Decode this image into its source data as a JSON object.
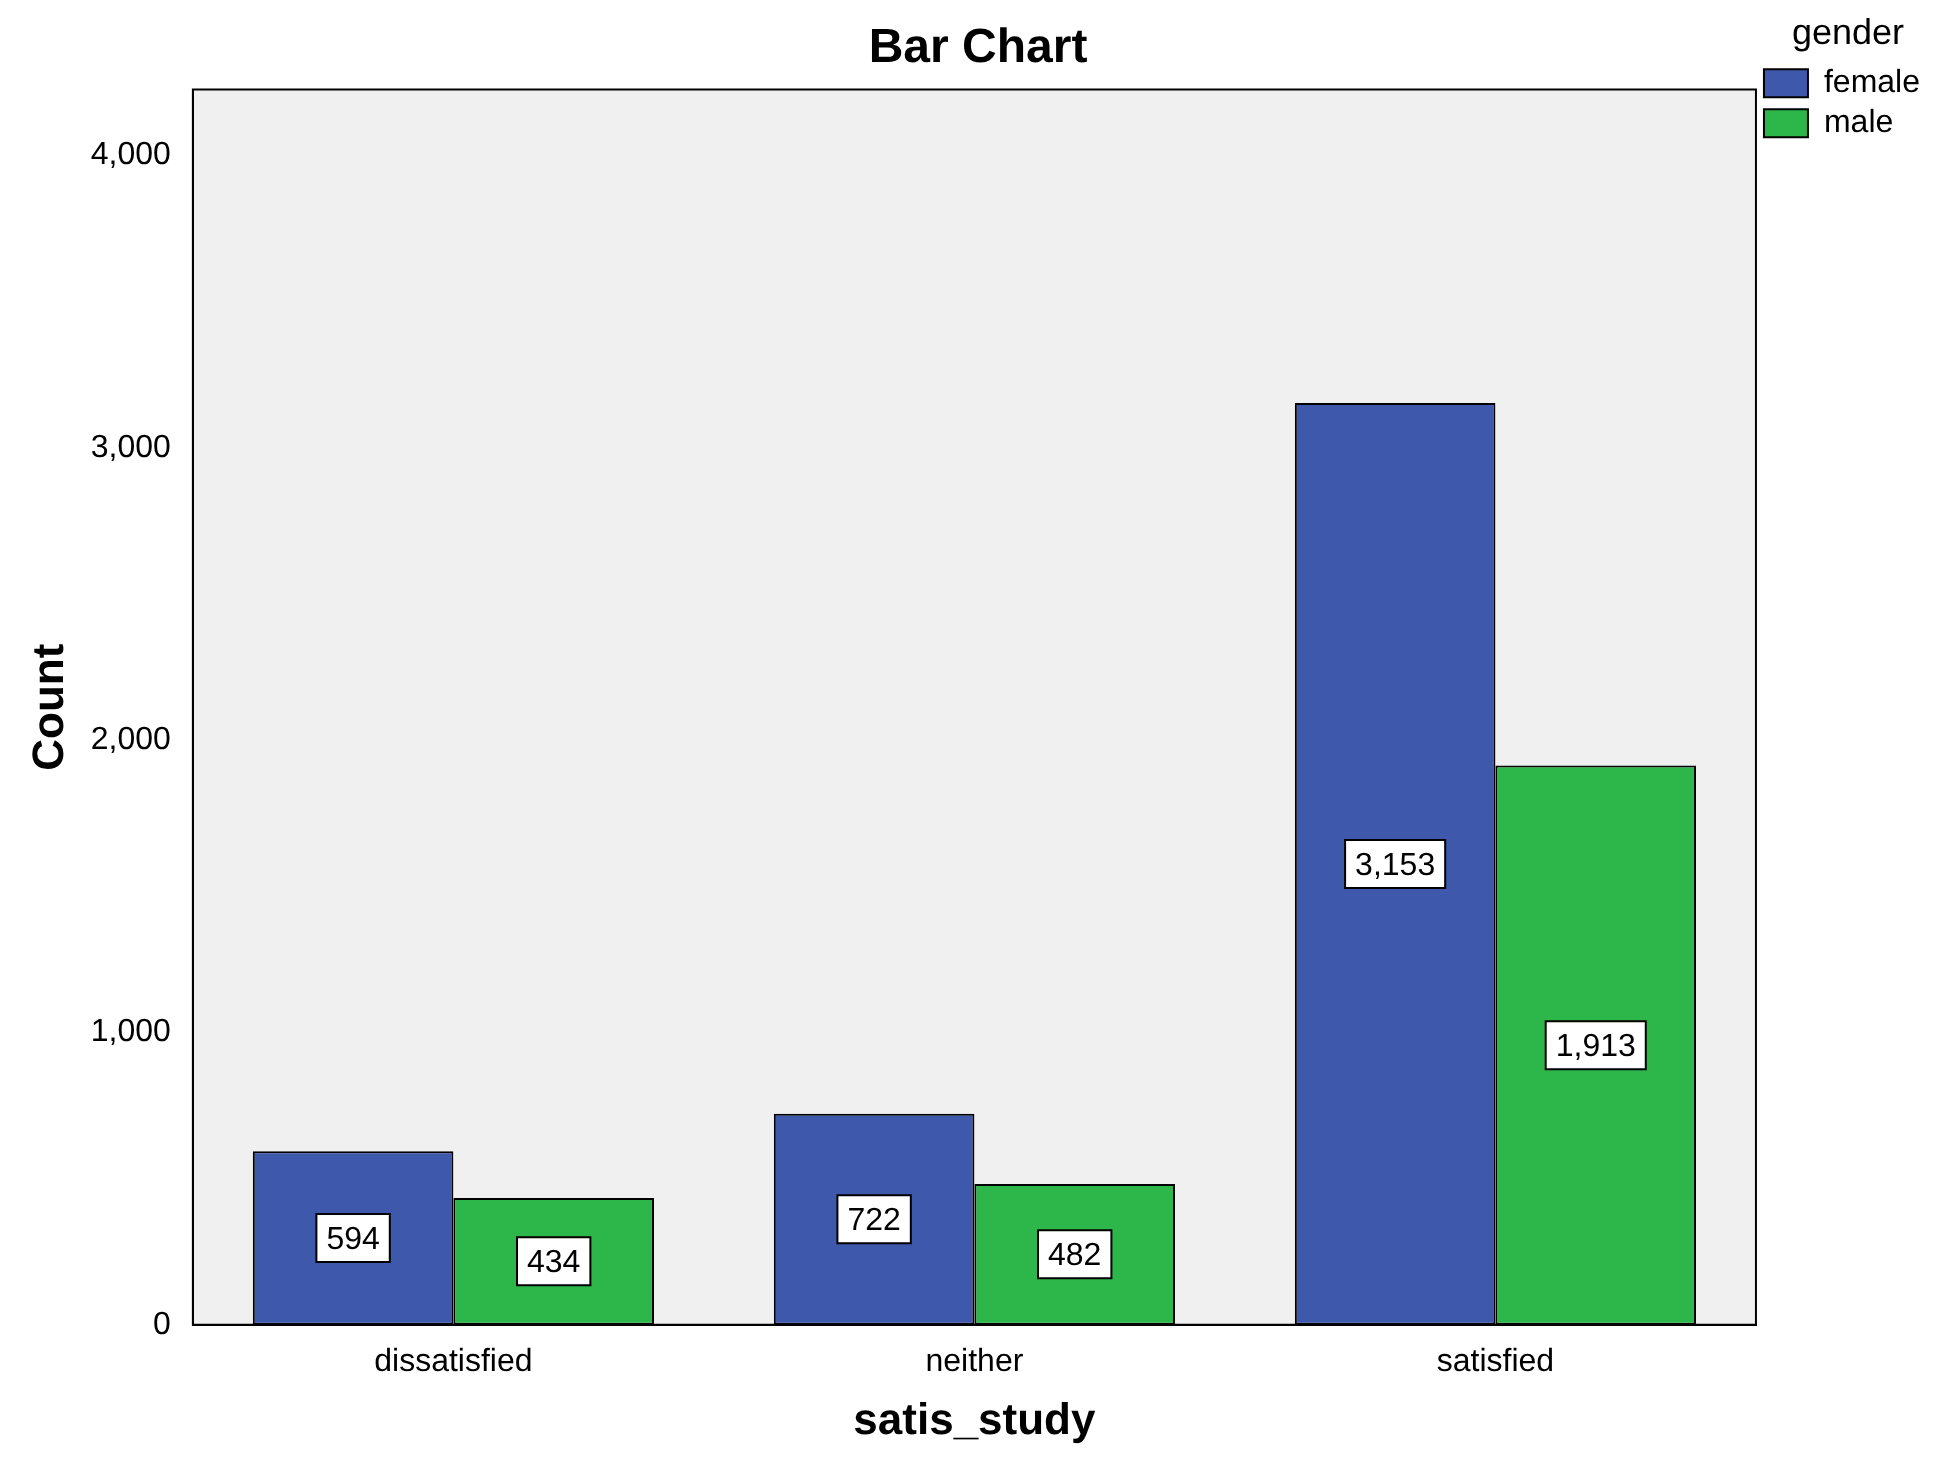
{
  "chart_data": {
    "type": "bar",
    "title": "Bar Chart",
    "xlabel": "satis_study",
    "ylabel": "Count",
    "legend_title": "gender",
    "categories": [
      "dissatisfied",
      "neither",
      "satisfied"
    ],
    "series": [
      {
        "name": "female",
        "color": "#3e58ac",
        "values": [
          594,
          722,
          3153
        ],
        "value_labels": [
          "594",
          "722",
          "3,153"
        ]
      },
      {
        "name": "male",
        "color": "#2db74a",
        "values": [
          434,
          482,
          1913
        ],
        "value_labels": [
          "434",
          "482",
          "1,913"
        ]
      }
    ],
    "ylim": [
      0,
      4225
    ],
    "yticks": [
      {
        "value": 0,
        "label": "0"
      },
      {
        "value": 1000,
        "label": "1,000"
      },
      {
        "value": 2000,
        "label": "2,000"
      },
      {
        "value": 3000,
        "label": "3,000"
      },
      {
        "value": 4000,
        "label": "4,000"
      }
    ],
    "grid": false,
    "legend": "top right"
  }
}
